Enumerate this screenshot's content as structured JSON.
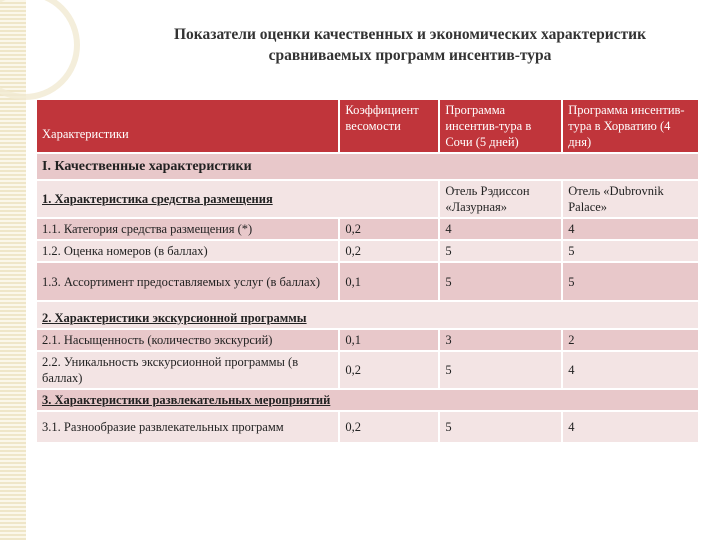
{
  "title_line1": "Показатели оценки качественных и экономических характеристик",
  "title_line2": "сравниваемых программ инсентив-тура",
  "header": {
    "col1": "Характеристики",
    "col2": "Коэффициент весомости",
    "col3": "Программа инсентив-тура в Сочи (5 дней)",
    "col4": "Программа инсентив-тура в Хорватию (4 дня)"
  },
  "group1": "I. Качественные характеристики",
  "section1": {
    "label": "1. Характеристика средства размещения",
    "hotel1": "Отель Рэдиссон «Лазурная»",
    "hotel2": "Отель «Dubrovnik Palace»"
  },
  "rows1": [
    {
      "name": "1.1. Категория средства размещения (*)",
      "w": "0,2",
      "a": "4",
      "b": "4"
    },
    {
      "name": "1.2. Оценка номеров (в баллах)",
      "w": "0,2",
      "a": "5",
      "b": "5"
    },
    {
      "name": "1.3. Ассортимент предоставляемых услуг (в баллах)",
      "w": "0,1",
      "a": "5",
      "b": "5"
    }
  ],
  "section2": "2. Характеристики экскурсионной программы",
  "rows2": [
    {
      "name": "2.1. Насыщенность (количество экскурсий)",
      "w": "0,1",
      "a": "3",
      "b": "2"
    },
    {
      "name": "2.2. Уникальность экскурсионной программы (в баллах)",
      "w": "0,2",
      "a": "5",
      "b": "4"
    }
  ],
  "section3": "3. Характеристики развлекательных мероприятий",
  "rows3": [
    {
      "name": "3.1. Разнообразие развлекательных программ",
      "w": "0,2",
      "a": "5",
      "b": "4"
    }
  ]
}
